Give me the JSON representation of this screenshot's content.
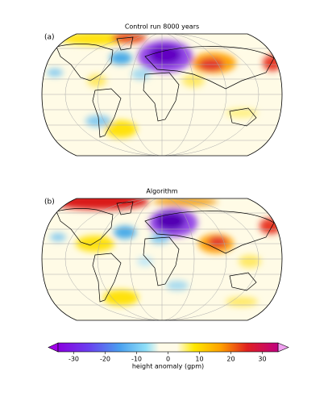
{
  "panels": [
    {
      "label": "(a)",
      "title": "Control run 8000 years"
    },
    {
      "label": "(b)",
      "title": "Algorithm"
    }
  ],
  "colorbar": {
    "label": "height anomaly (gpm)",
    "lim": [
      -35,
      35
    ],
    "ticks": [
      -30,
      -20,
      -10,
      0,
      10,
      20,
      30
    ]
  }
}
